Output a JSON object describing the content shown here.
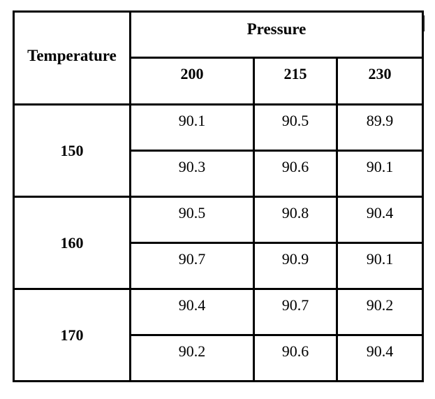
{
  "page": {
    "background_color": "#ffffff",
    "border_color": "#000000"
  },
  "table": {
    "corner_header": "Temperature",
    "group_header": "Pressure",
    "pressure_levels": [
      "200",
      "215",
      "230"
    ],
    "groups": [
      {
        "temperature": "150",
        "rows": [
          [
            "90.1",
            "90.5",
            "89.9"
          ],
          [
            "90.3",
            "90.6",
            "90.1"
          ]
        ]
      },
      {
        "temperature": "160",
        "rows": [
          [
            "90.5",
            "90.8",
            "90.4"
          ],
          [
            "90.7",
            "90.9",
            "90.1"
          ]
        ]
      },
      {
        "temperature": "170",
        "rows": [
          [
            "90.4",
            "90.7",
            "90.2"
          ],
          [
            "90.2",
            "90.6",
            "90.4"
          ]
        ]
      }
    ]
  },
  "chart_data": {
    "type": "table",
    "title": "",
    "row_factor_label": "Temperature",
    "column_factor_label": "Pressure",
    "column_levels": [
      200,
      215,
      230
    ],
    "row_levels": [
      150,
      160,
      170
    ],
    "replicates_per_cell": 2,
    "cells": {
      "150": [
        [
          90.1,
          90.5,
          89.9
        ],
        [
          90.3,
          90.6,
          90.1
        ]
      ],
      "160": [
        [
          90.5,
          90.8,
          90.4
        ],
        [
          90.7,
          90.9,
          90.1
        ]
      ],
      "170": [
        [
          90.4,
          90.7,
          90.2
        ],
        [
          90.2,
          90.6,
          90.4
        ]
      ]
    }
  }
}
